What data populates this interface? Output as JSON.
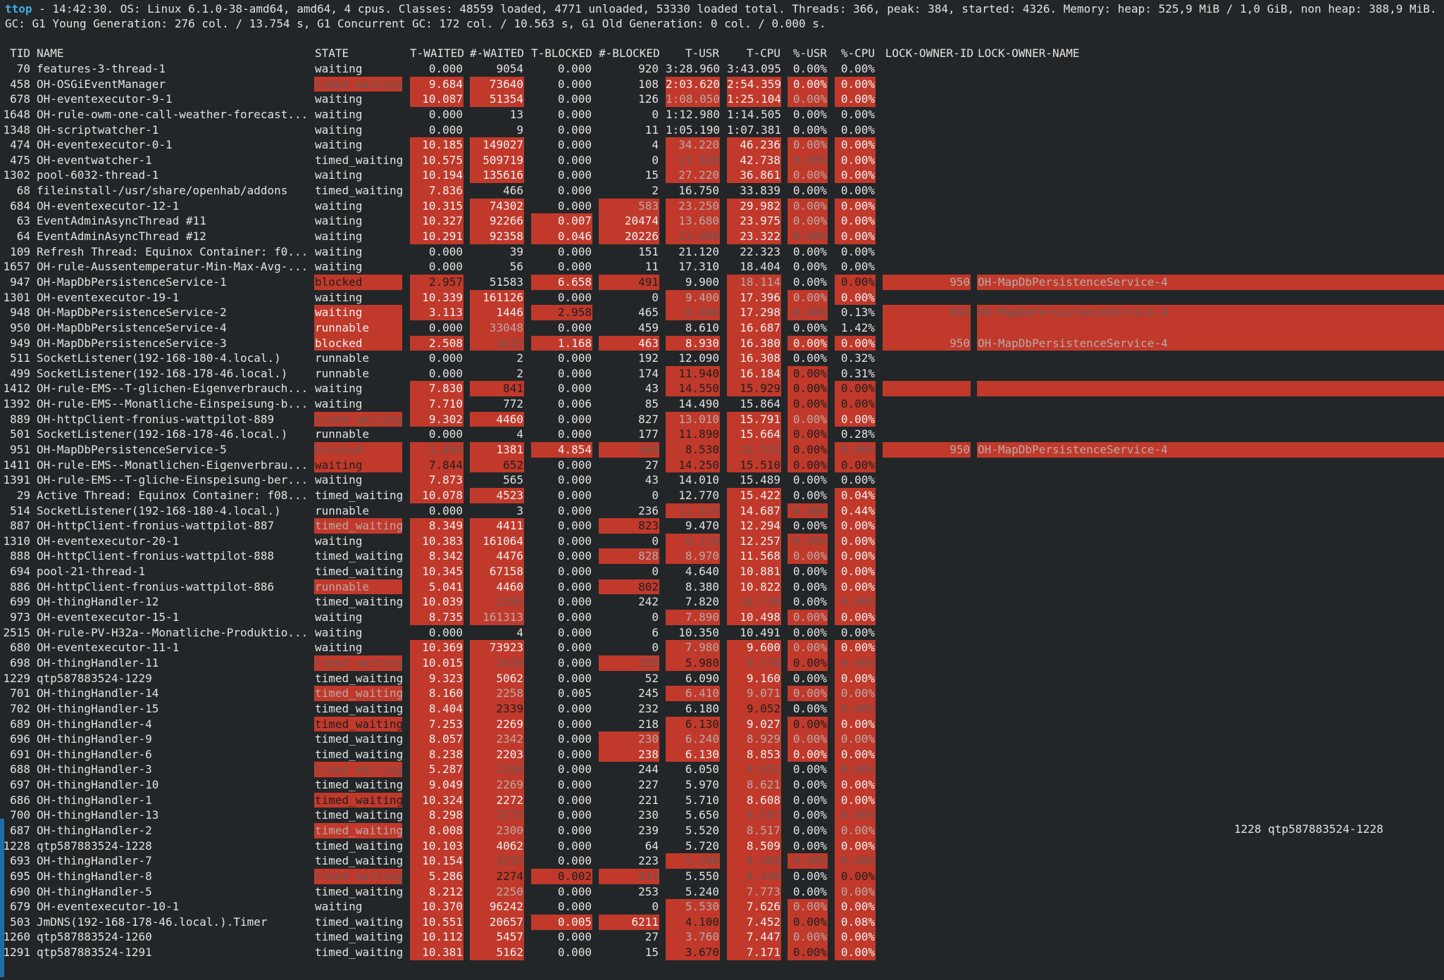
{
  "header": {
    "app": "ttop",
    "line1": " - 14:42:30. OS: Linux 6.1.0-38-amd64, amd64, 4 cpus. Classes: 48559 loaded, 4771 unloaded, 53330 loaded total. Threads: 366, peak: 384, started: 4326. Memory: heap: 525,9 MiB / 1,0 GiB, non heap: 388,9 MiB.",
    "line2": "GC: G1 Young Generation: 276 col. / 13.754 s, G1 Concurrent GC: 172 col. / 10.563 s, G1 Old Generation: 0 col. / 0.000 s."
  },
  "columns": {
    "tid": "TID",
    "name": "NAME",
    "state": "STATE",
    "tw": "T-WAITED",
    "nw": "#-WAITED",
    "tb": "T-BLOCKED",
    "nb": "#-BLOCKED",
    "tusr": "T-USR",
    "tcpu": "T-CPU",
    "pusr": "%-USR",
    "pcpu": "%-CPU",
    "lid": "LOCK-OWNER-ID",
    "lname": "LOCK-OWNER-NAME"
  },
  "highlight_color": "#c0392b",
  "rows": [
    {
      "tid": "70",
      "name": "features-3-thread-1",
      "state": "waiting",
      "tw": "0.000",
      "nw": "9054",
      "tb": "0.000",
      "nb": "920",
      "tusr": "3:28.960",
      "tcpu": "3:43.095",
      "pusr": "0.00%",
      "pcpu": "0.00%",
      "hl": "000000000"
    },
    {
      "tid": "458",
      "name": "OH-OSGiEventManager",
      "state": "timed_waiting",
      "tw": "9.684",
      "nw": "73640",
      "tb": "0.000",
      "nb": "108",
      "tusr": "2:03.620",
      "tcpu": "2:54.359",
      "pusr": "0.00%",
      "pcpu": "0.00%",
      "hl": "311001111"
    },
    {
      "tid": "678",
      "name": "OH-eventexecutor-9-1",
      "state": "waiting",
      "tw": "10.087",
      "nw": "51354",
      "tb": "0.000",
      "nb": "126",
      "tusr": "1:08.050",
      "tcpu": "1:25.104",
      "pusr": "0.00%",
      "pcpu": "0.00%",
      "hl": "011002121"
    },
    {
      "tid": "1648",
      "name": "OH-rule-owm-one-call-weather-forecast...",
      "state": "waiting",
      "tw": "0.000",
      "nw": "13",
      "tb": "0.000",
      "nb": "0",
      "tusr": "1:12.980",
      "tcpu": "1:14.505",
      "pusr": "0.00%",
      "pcpu": "0.00%",
      "hl": "000000000"
    },
    {
      "tid": "1348",
      "name": "OH-scriptwatcher-1",
      "state": "waiting",
      "tw": "0.000",
      "nw": "9",
      "tb": "0.000",
      "nb": "11",
      "tusr": "1:05.190",
      "tcpu": "1:07.381",
      "pusr": "0.00%",
      "pcpu": "0.00%",
      "hl": "000000000"
    },
    {
      "tid": "474",
      "name": "OH-eventexecutor-0-1",
      "state": "waiting",
      "tw": "10.185",
      "nw": "149027",
      "tb": "0.000",
      "nb": "4",
      "tusr": "34.220",
      "tcpu": "46.236",
      "pusr": "0.00%",
      "pcpu": "0.00%",
      "hl": "011002121"
    },
    {
      "tid": "475",
      "name": "OH-eventwatcher-1",
      "state": "timed_waiting",
      "tw": "10.575",
      "nw": "509719",
      "tb": "0.000",
      "nb": "0",
      "tusr": "21.020",
      "tcpu": "42.738",
      "pusr": "0.00%",
      "pcpu": "0.00%",
      "hl": "011003131"
    },
    {
      "tid": "1302",
      "name": "pool-6032-thread-1",
      "state": "waiting",
      "tw": "10.194",
      "nw": "135616",
      "tb": "0.000",
      "nb": "15",
      "tusr": "27.220",
      "tcpu": "36.861",
      "pusr": "0.00%",
      "pcpu": "0.00%",
      "hl": "011002121"
    },
    {
      "tid": "68",
      "name": "fileinstall-/usr/share/openhab/addons",
      "state": "timed_waiting",
      "tw": "7.836",
      "nw": "466",
      "tb": "0.000",
      "nb": "2",
      "tusr": "16.750",
      "tcpu": "33.839",
      "pusr": "0.00%",
      "pcpu": "0.00%",
      "hl": "010000000"
    },
    {
      "tid": "684",
      "name": "OH-eventexecutor-12-1",
      "state": "waiting",
      "tw": "10.315",
      "nw": "74302",
      "tb": "0.000",
      "nb": "583",
      "tusr": "23.250",
      "tcpu": "29.982",
      "pusr": "0.00%",
      "pcpu": "0.00%",
      "hl": "011022121"
    },
    {
      "tid": "63",
      "name": "EventAdminAsyncThread #11",
      "state": "waiting",
      "tw": "10.327",
      "nw": "92266",
      "tb": "0.007",
      "nb": "20474",
      "tusr": "13.680",
      "tcpu": "23.975",
      "pusr": "0.00%",
      "pcpu": "0.00%",
      "hl": "011112121"
    },
    {
      "tid": "64",
      "name": "EventAdminAsyncThread #12",
      "state": "waiting",
      "tw": "10.291",
      "nw": "92358",
      "tb": "0.046",
      "nb": "20226",
      "tusr": "13.080",
      "tcpu": "23.322",
      "pusr": "0.00%",
      "pcpu": "0.00%",
      "hl": "011113131"
    },
    {
      "tid": "109",
      "name": "Refresh Thread: Equinox Container: f0...",
      "state": "waiting",
      "tw": "0.000",
      "nw": "39",
      "tb": "0.000",
      "nb": "151",
      "tusr": "21.120",
      "tcpu": "22.323",
      "pusr": "0.00%",
      "pcpu": "0.00%",
      "hl": "000000000"
    },
    {
      "tid": "1657",
      "name": "OH-rule-Aussentemperatur-Min-Max-Avg-...",
      "state": "waiting",
      "tw": "0.000",
      "nw": "56",
      "tb": "0.000",
      "nb": "11",
      "tusr": "17.310",
      "tcpu": "18.404",
      "pusr": "0.00%",
      "pcpu": "0.00%",
      "hl": "000000000"
    },
    {
      "tid": "947",
      "name": "OH-MapDbPersistenceService-1",
      "state": "blocked",
      "tw": "2.957",
      "nw": "51583",
      "tb": "6.658",
      "nb": "491",
      "tusr": "9.900",
      "tcpu": "18.114",
      "pusr": "0.00%",
      "pcpu": "0.00%",
      "hl": "440140204",
      "lid": "950",
      "lname": "OH-MapDbPersistenceService-4",
      "lhl": "2"
    },
    {
      "tid": "1301",
      "name": "OH-eventexecutor-19-1",
      "state": "waiting",
      "tw": "10.339",
      "nw": "161126",
      "tb": "0.000",
      "nb": "0",
      "tusr": "9.400",
      "tcpu": "17.396",
      "pusr": "0.00%",
      "pcpu": "0.00%",
      "hl": "011002121"
    },
    {
      "tid": "948",
      "name": "OH-MapDbPersistenceService-2",
      "state": "waiting",
      "tw": "3.113",
      "nw": "1446",
      "tb": "2.958",
      "nb": "465",
      "tusr": "8.990",
      "tcpu": "17.298",
      "pusr": "0.00%",
      "pcpu": "0.13%",
      "hl": "111403130",
      "lid": "950",
      "lname": "OH-MapDbPersistenceService-4",
      "lhl": "3"
    },
    {
      "tid": "950",
      "name": "OH-MapDbPersistenceService-4",
      "state": "runnable",
      "tw": "0.000",
      "nw": "33048",
      "tb": "0.000",
      "nb": "459",
      "tusr": "8.610",
      "tcpu": "16.687",
      "pusr": "0.00%",
      "pcpu": "1.42%",
      "hl": "102000100",
      "lid": "",
      "lname": "",
      "lhl": "2"
    },
    {
      "tid": "949",
      "name": "OH-MapDbPersistenceService-3",
      "state": "blocked",
      "tw": "2.508",
      "nw": "1415",
      "tb": "1.168",
      "nb": "463",
      "tusr": "8.930",
      "tcpu": "16.380",
      "pusr": "0.00%",
      "pcpu": "0.00%",
      "hl": "113111111",
      "lid": "950",
      "lname": "OH-MapDbPersistenceService-4",
      "lhl": "2"
    },
    {
      "tid": "511",
      "name": "SocketListener(192-168-180-4.local.)",
      "state": "runnable",
      "tw": "0.000",
      "nw": "2",
      "tb": "0.000",
      "nb": "192",
      "tusr": "12.090",
      "tcpu": "16.308",
      "pusr": "0.00%",
      "pcpu": "0.32%",
      "hl": "000000100"
    },
    {
      "tid": "499",
      "name": "SocketListener(192-168-178-46.local.)",
      "state": "runnable",
      "tw": "0.000",
      "nw": "2",
      "tb": "0.000",
      "nb": "174",
      "tusr": "11.940",
      "tcpu": "16.184",
      "pusr": "0.00%",
      "pcpu": "0.31%",
      "hl": "000004140"
    },
    {
      "tid": "1412",
      "name": "OH-rule-EMS--T-glichen-Eigenverbrauch...",
      "state": "waiting",
      "tw": "7.830",
      "nw": "841",
      "tb": "0.000",
      "nb": "43",
      "tusr": "14.550",
      "tcpu": "15.929",
      "pusr": "0.00%",
      "pcpu": "0.00%",
      "hl": "014004444",
      "lid": "",
      "lname": "",
      "lhl": "2"
    },
    {
      "tid": "1392",
      "name": "OH-rule-EMS--Monatliche-Einspeisung-b...",
      "state": "waiting",
      "tw": "7.710",
      "nw": "772",
      "tb": "0.006",
      "nb": "85",
      "tusr": "14.490",
      "tcpu": "15.864",
      "pusr": "0.00%",
      "pcpu": "0.00%",
      "hl": "010000044"
    },
    {
      "tid": "889",
      "name": "OH-httpClient-fronius-wattpilot-889",
      "state": "timed_waiting",
      "tw": "9.302",
      "nw": "4460",
      "tb": "0.000",
      "nb": "827",
      "tusr": "13.010",
      "tcpu": "15.791",
      "pusr": "0.00%",
      "pcpu": "0.00%",
      "hl": "311002121"
    },
    {
      "tid": "501",
      "name": "SocketListener(192-168-178-46.local.)",
      "state": "runnable",
      "tw": "0.000",
      "nw": "4",
      "tb": "0.000",
      "nb": "177",
      "tusr": "11.890",
      "tcpu": "15.664",
      "pusr": "0.00%",
      "pcpu": "0.28%",
      "hl": "000004140"
    },
    {
      "tid": "951",
      "name": "OH-MapDbPersistenceService-5",
      "state": "blocked",
      "tw": "1.804",
      "nw": "1381",
      "tb": "4.854",
      "nb": "463",
      "tusr": "8.530",
      "tcpu": "15.531",
      "pusr": "0.00%",
      "pcpu": "0.00%",
      "hl": "331134343",
      "lid": "950",
      "lname": "OH-MapDbPersistenceService-4",
      "lhl": "2"
    },
    {
      "tid": "1411",
      "name": "OH-rule-EMS--Monatlichen-Eigenverbrau...",
      "state": "waiting",
      "tw": "7.844",
      "nw": "652",
      "tb": "0.000",
      "nb": "27",
      "tusr": "14.250",
      "tcpu": "15.510",
      "pusr": "0.00%",
      "pcpu": "0.00%",
      "hl": "444004444"
    },
    {
      "tid": "1391",
      "name": "OH-rule-EMS--T-gliche-Einspeisung-ber...",
      "state": "waiting",
      "tw": "7.873",
      "nw": "565",
      "tb": "0.000",
      "nb": "43",
      "tusr": "14.010",
      "tcpu": "15.489",
      "pusr": "0.00%",
      "pcpu": "0.00%",
      "hl": "010000000"
    },
    {
      "tid": "29",
      "name": "Active Thread: Equinox Container: f08...",
      "state": "timed_waiting",
      "tw": "10.078",
      "nw": "4523",
      "tb": "0.000",
      "nb": "0",
      "tusr": "12.770",
      "tcpu": "15.422",
      "pusr": "0.00%",
      "pcpu": "0.04%",
      "hl": "011000101"
    },
    {
      "tid": "514",
      "name": "SocketListener(192-168-180-4.local.)",
      "state": "runnable",
      "tw": "0.000",
      "nw": "3",
      "tb": "0.000",
      "nb": "236",
      "tusr": "11.520",
      "tcpu": "14.687",
      "pusr": "0.00%",
      "pcpu": "0.44%",
      "hl": "000003131"
    },
    {
      "tid": "887",
      "name": "OH-httpClient-fronius-wattpilot-887",
      "state": "timed_waiting",
      "tw": "8.349",
      "nw": "4411",
      "tb": "0.000",
      "nb": "823",
      "tusr": "9.470",
      "tcpu": "12.294",
      "pusr": "0.00%",
      "pcpu": "0.00%",
      "hl": "211040101"
    },
    {
      "tid": "1310",
      "name": "OH-eventexecutor-20-1",
      "state": "waiting",
      "tw": "10.383",
      "nw": "161064",
      "tb": "0.000",
      "nb": "0",
      "tusr": "8.110",
      "tcpu": "12.257",
      "pusr": "0.00%",
      "pcpu": "0.00%",
      "hl": "011003131"
    },
    {
      "tid": "888",
      "name": "OH-httpClient-fronius-wattpilot-888",
      "state": "timed_waiting",
      "tw": "8.342",
      "nw": "4476",
      "tb": "0.000",
      "nb": "828",
      "tusr": "8.970",
      "tcpu": "11.568",
      "pusr": "0.00%",
      "pcpu": "0.00%",
      "hl": "011022121"
    },
    {
      "tid": "694",
      "name": "pool-21-thread-1",
      "state": "timed_waiting",
      "tw": "10.345",
      "nw": "67158",
      "tb": "0.000",
      "nb": "0",
      "tusr": "4.640",
      "tcpu": "10.881",
      "pusr": "0.00%",
      "pcpu": "0.00%",
      "hl": "011000101"
    },
    {
      "tid": "886",
      "name": "OH-httpClient-fronius-wattpilot-886",
      "state": "runnable",
      "tw": "5.041",
      "nw": "4460",
      "tb": "0.000",
      "nb": "802",
      "tusr": "8.380",
      "tcpu": "10.822",
      "pusr": "0.00%",
      "pcpu": "0.00%",
      "hl": "211040101"
    },
    {
      "tid": "699",
      "name": "OH-thingHandler-12",
      "state": "timed_waiting",
      "tw": "10.039",
      "nw": "2285",
      "tb": "0.000",
      "nb": "242",
      "tusr": "7.820",
      "tcpu": "10.736",
      "pusr": "0.00%",
      "pcpu": "0.00%",
      "hl": "013000303"
    },
    {
      "tid": "973",
      "name": "OH-eventexecutor-15-1",
      "state": "waiting",
      "tw": "8.735",
      "nw": "161313",
      "tb": "0.000",
      "nb": "0",
      "tusr": "7.890",
      "tcpu": "10.498",
      "pusr": "0.00%",
      "pcpu": "0.00%",
      "hl": "012002121"
    },
    {
      "tid": "2515",
      "name": "OH-rule-PV-H32a--Monatliche-Produktio...",
      "state": "waiting",
      "tw": "0.000",
      "nw": "4",
      "tb": "0.000",
      "nb": "6",
      "tusr": "10.350",
      "tcpu": "10.491",
      "pusr": "0.00%",
      "pcpu": "0.00%",
      "hl": "000000000"
    },
    {
      "tid": "680",
      "name": "OH-eventexecutor-11-1",
      "state": "waiting",
      "tw": "10.369",
      "nw": "73923",
      "tb": "0.000",
      "nb": "0",
      "tusr": "7.980",
      "tcpu": "9.600",
      "pusr": "0.00%",
      "pcpu": "0.00%",
      "hl": "011002121"
    },
    {
      "tid": "698",
      "name": "OH-thingHandler-11",
      "state": "timed_waiting",
      "tw": "10.015",
      "nw": "2426",
      "tb": "0.000",
      "nb": "295",
      "tusr": "5.980",
      "tcpu": "9.176",
      "pusr": "0.00%",
      "pcpu": "0.00%",
      "hl": "313034343"
    },
    {
      "tid": "1229",
      "name": "qtp587883524-1229",
      "state": "timed_waiting",
      "tw": "9.323",
      "nw": "5062",
      "tb": "0.000",
      "nb": "52",
      "tusr": "6.090",
      "tcpu": "9.160",
      "pusr": "0.00%",
      "pcpu": "0.00%",
      "hl": "011000101"
    },
    {
      "tid": "701",
      "name": "OH-thingHandler-14",
      "state": "timed_waiting",
      "tw": "8.160",
      "nw": "2258",
      "tb": "0.005",
      "nb": "245",
      "tusr": "6.410",
      "tcpu": "9.071",
      "pusr": "0.00%",
      "pcpu": "0.00%",
      "hl": "212002222"
    },
    {
      "tid": "702",
      "name": "OH-thingHandler-15",
      "state": "timed_waiting",
      "tw": "8.404",
      "nw": "2339",
      "tb": "0.000",
      "nb": "232",
      "tusr": "6.180",
      "tcpu": "9.052",
      "pusr": "0.00%",
      "pcpu": "0.00%",
      "hl": "014000403"
    },
    {
      "tid": "689",
      "name": "OH-thingHandler-4",
      "state": "timed_waiting",
      "tw": "7.253",
      "nw": "2269",
      "tb": "0.000",
      "nb": "218",
      "tusr": "6.130",
      "tcpu": "9.027",
      "pusr": "0.00%",
      "pcpu": "0.00%",
      "hl": "411004141"
    },
    {
      "tid": "696",
      "name": "OH-thingHandler-9",
      "state": "timed_waiting",
      "tw": "8.057",
      "nw": "2342",
      "tb": "0.000",
      "nb": "230",
      "tusr": "6.240",
      "tcpu": "8.929",
      "pusr": "0.00%",
      "pcpu": "0.00%",
      "hl": "012022222"
    },
    {
      "tid": "691",
      "name": "OH-thingHandler-6",
      "state": "timed_waiting",
      "tw": "8.238",
      "nw": "2203",
      "tb": "0.000",
      "nb": "238",
      "tusr": "6.130",
      "tcpu": "8.853",
      "pusr": "0.00%",
      "pcpu": "0.00%",
      "hl": "011011111"
    },
    {
      "tid": "688",
      "name": "OH-thingHandler-3",
      "state": "timed_waiting",
      "tw": "5.287",
      "nw": "2260",
      "tb": "0.000",
      "nb": "244",
      "tusr": "6.050",
      "tcpu": "8.652",
      "pusr": "0.00%",
      "pcpu": "0.00%",
      "hl": "313000303"
    },
    {
      "tid": "697",
      "name": "OH-thingHandler-10",
      "state": "timed_waiting",
      "tw": "9.049",
      "nw": "2269",
      "tb": "0.000",
      "nb": "227",
      "tusr": "5.970",
      "tcpu": "8.621",
      "pusr": "0.00%",
      "pcpu": "0.00%",
      "hl": "012000201"
    },
    {
      "tid": "686",
      "name": "OH-thingHandler-1",
      "state": "timed_waiting",
      "tw": "10.324",
      "nw": "2272",
      "tb": "0.000",
      "nb": "221",
      "tusr": "5.710",
      "tcpu": "8.608",
      "pusr": "0.00%",
      "pcpu": "0.00%",
      "hl": "411000101"
    },
    {
      "tid": "700",
      "name": "OH-thingHandler-13",
      "state": "timed_waiting",
      "tw": "8.298",
      "nw": "2275",
      "tb": "0.000",
      "nb": "230",
      "tusr": "5.650",
      "tcpu": "8.587",
      "pusr": "0.00%",
      "pcpu": "0.00%",
      "hl": "013000303"
    },
    {
      "tid": "687",
      "name": "OH-thingHandler-2",
      "state": "timed_waiting",
      "tw": "8.008",
      "nw": "2300",
      "tb": "0.000",
      "nb": "239",
      "tusr": "5.520",
      "tcpu": "8.517",
      "pusr": "0.00%",
      "pcpu": "0.00%",
      "hl": "212000202"
    },
    {
      "tid": "1228",
      "name": "qtp587883524-1228",
      "state": "timed_waiting",
      "tw": "10.103",
      "nw": "4062",
      "tb": "0.000",
      "nb": "64",
      "tusr": "5.720",
      "tcpu": "8.509",
      "pusr": "0.00%",
      "pcpu": "0.00%",
      "hl": "011000101"
    },
    {
      "tid": "693",
      "name": "OH-thingHandler-7",
      "state": "timed_waiting",
      "tw": "10.154",
      "nw": "2219",
      "tb": "0.000",
      "nb": "223",
      "tusr": "5.780",
      "tcpu": "8.369",
      "pusr": "0.00%",
      "pcpu": "0.00%",
      "hl": "013003333"
    },
    {
      "tid": "695",
      "name": "OH-thingHandler-8",
      "state": "timed_waiting",
      "tw": "5.286",
      "nw": "2274",
      "tb": "0.002",
      "nb": "214",
      "tusr": "5.550",
      "tcpu": "8.340",
      "pusr": "0.00%",
      "pcpu": "0.00%",
      "hl": "314430304"
    },
    {
      "tid": "690",
      "name": "OH-thingHandler-5",
      "state": "timed_waiting",
      "tw": "8.212",
      "nw": "2250",
      "tb": "0.000",
      "nb": "253",
      "tusr": "5.240",
      "tcpu": "7.773",
      "pusr": "0.00%",
      "pcpu": "0.00%",
      "hl": "012000202"
    },
    {
      "tid": "679",
      "name": "OH-eventexecutor-10-1",
      "state": "waiting",
      "tw": "10.370",
      "nw": "96242",
      "tb": "0.000",
      "nb": "0",
      "tusr": "5.530",
      "tcpu": "7.626",
      "pusr": "0.00%",
      "pcpu": "0.00%",
      "hl": "011002121"
    },
    {
      "tid": "503",
      "name": "JmDNS(192-168-178-46.local.).Timer",
      "state": "timed_waiting",
      "tw": "10.551",
      "nw": "20657",
      "tb": "0.005",
      "nb": "6211",
      "tusr": "4.100",
      "tcpu": "7.452",
      "pusr": "0.00%",
      "pcpu": "0.08%",
      "hl": "011114141"
    },
    {
      "tid": "1260",
      "name": "qtp587883524-1260",
      "state": "timed_waiting",
      "tw": "10.112",
      "nw": "5457",
      "tb": "0.000",
      "nb": "27",
      "tusr": "3.760",
      "tcpu": "7.447",
      "pusr": "0.00%",
      "pcpu": "0.00%",
      "hl": "011002121"
    },
    {
      "tid": "1291",
      "name": "qtp587883524-1291",
      "state": "timed_waiting",
      "tw": "10.381",
      "nw": "5162",
      "tb": "0.000",
      "nb": "15",
      "tusr": "3.670",
      "tcpu": "7.171",
      "pusr": "0.00%",
      "pcpu": "0.00%",
      "hl": "011004141"
    }
  ],
  "floating_label": "1228 qtp587883524-1228"
}
